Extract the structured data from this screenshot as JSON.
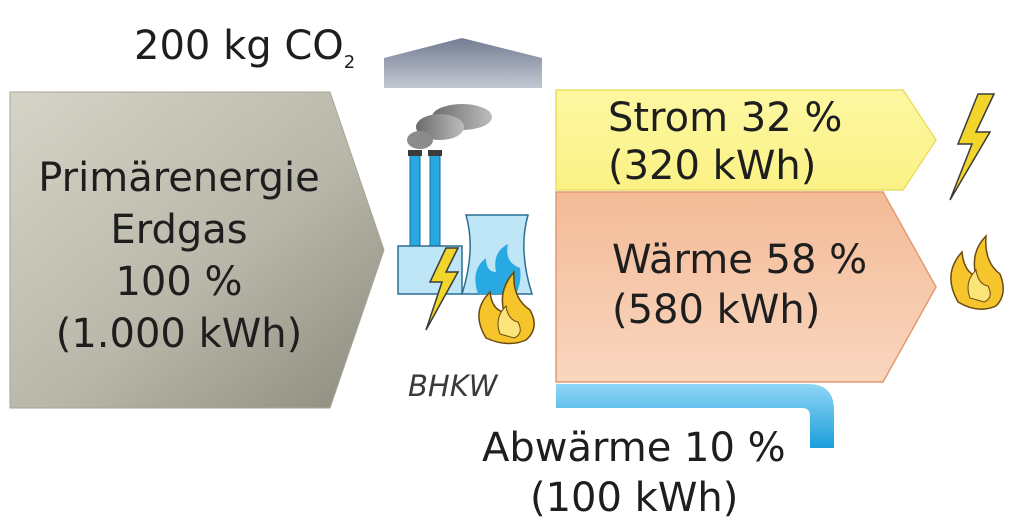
{
  "emission": {
    "prefix": "200 kg CO",
    "subscript": "2"
  },
  "input": {
    "line1": "Primärenergie",
    "line2": "Erdgas",
    "line3": "100 %",
    "line4": "(1.000 kWh)"
  },
  "plant": {
    "label": "BHKW"
  },
  "outputs": {
    "power": {
      "line1": "Strom 32 %",
      "line2": "(320 kWh)"
    },
    "heat": {
      "line1": "Wärme 58 %",
      "line2": "(580 kWh)"
    },
    "waste": {
      "line1": "Abwärme 10 %",
      "line2": "(100 kWh)"
    }
  },
  "colors": {
    "input_arrow": "#b8b6a8",
    "co2_arrow": "#8a93a6",
    "power_arrow": "#fbf59a",
    "heat_arrow": "#f2b48c",
    "waste_pipe": "#29a9e1",
    "flame": "#f6c42b",
    "lightning": "#f2d52a"
  },
  "icons": [
    "co2-arrow-icon",
    "chp-plant-icon",
    "lightning-icon",
    "flame-icon"
  ]
}
